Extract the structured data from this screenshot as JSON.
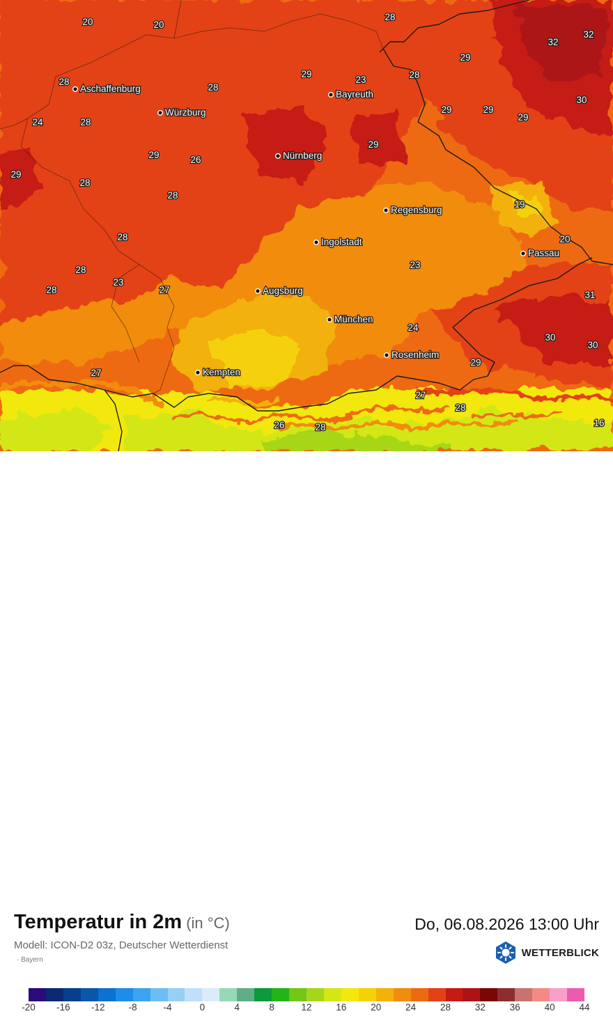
{
  "map": {
    "region": "Bayern",
    "cities": [
      {
        "name": "Aschaffenburg"
      },
      {
        "name": "Würzburg"
      },
      {
        "name": "Bayreuth"
      },
      {
        "name": "Nürnberg"
      },
      {
        "name": "Regensburg"
      },
      {
        "name": "Ingolstadt"
      },
      {
        "name": "Passau"
      },
      {
        "name": "Augsburg"
      },
      {
        "name": "München"
      },
      {
        "name": "Rosenheim"
      },
      {
        "name": "Kempten"
      }
    ],
    "temperature_labels": [
      "20",
      "20",
      "28",
      "32",
      "29",
      "23",
      "28",
      "29",
      "32",
      "28",
      "28",
      "24",
      "28",
      "30",
      "29",
      "29",
      "29",
      "29",
      "29",
      "26",
      "28",
      "29",
      "28",
      "19",
      "28",
      "20",
      "23",
      "28",
      "28",
      "23",
      "27",
      "31",
      "24",
      "30",
      "30",
      "29",
      "27",
      "27",
      "28",
      "26",
      "28",
      "16"
    ]
  },
  "footer": {
    "title": "Temperatur in 2m",
    "unit": "(in °C)",
    "datetime": "Do, 06.08.2026 13:00 Uhr",
    "model": "Modell: ICON-D2 03z, Deutscher Wetterdienst",
    "region": "Bayern",
    "logo_text": "WETTERBLICK"
  },
  "legend": {
    "colors": [
      "#2b0a7a",
      "#0c2a74",
      "#073f8c",
      "#0857a8",
      "#0d71d3",
      "#1d8de8",
      "#3ba3f0",
      "#6dbdf5",
      "#98cff6",
      "#bfe0f8",
      "#dbebf9",
      "#97d9b6",
      "#5fae86",
      "#0c9a3a",
      "#22b51a",
      "#74c617",
      "#a6d619",
      "#d3e715",
      "#f2e80e",
      "#f5d10a",
      "#f3b10a",
      "#f18c0d",
      "#ee6a12",
      "#e34216",
      "#c51b14",
      "#ad1218",
      "#7a0608",
      "#8c2e2d",
      "#c8736f",
      "#f48a86",
      "#f6a2c8",
      "#ed5bb1"
    ],
    "ticks": [
      "-20",
      "-16",
      "-12",
      "-8",
      "-4",
      "0",
      "4",
      "8",
      "12",
      "16",
      "20",
      "24",
      "28",
      "32",
      "36",
      "40",
      "44"
    ]
  }
}
